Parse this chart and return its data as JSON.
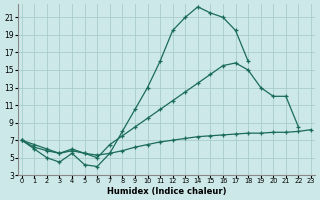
{
  "xlabel": "Humidex (Indice chaleur)",
  "bg_color": "#cce8e8",
  "grid_color": "#aacccc",
  "line_color": "#1a6b5a",
  "xlim": [
    -0.3,
    23.3
  ],
  "ylim": [
    3,
    22.5
  ],
  "yticks": [
    3,
    5,
    7,
    9,
    11,
    13,
    15,
    17,
    19,
    21
  ],
  "xtick_labels": [
    "0",
    "1",
    "2",
    "3",
    "4",
    "5",
    "6",
    "7",
    "8",
    "9",
    "10",
    "11",
    "12",
    "13",
    "14",
    "15",
    "16",
    "17",
    "18",
    "19",
    "20",
    "21",
    "22",
    "23"
  ],
  "curve1_x": [
    0,
    1,
    2,
    3,
    4,
    5,
    6,
    7,
    8,
    9,
    10,
    11,
    12,
    13,
    14,
    15,
    16,
    17,
    18
  ],
  "curve1_y": [
    7.0,
    6.0,
    5.0,
    4.5,
    5.5,
    4.2,
    4.0,
    5.5,
    8.0,
    10.5,
    13.0,
    16.0,
    19.5,
    21.0,
    22.2,
    21.5,
    21.0,
    19.5,
    16.0
  ],
  "curve2_x": [
    0,
    1,
    2,
    3,
    4,
    5,
    6,
    7,
    8,
    9,
    10,
    11,
    12,
    13,
    14,
    15,
    16,
    17,
    18,
    19,
    20,
    21,
    22
  ],
  "curve2_y": [
    7.0,
    6.5,
    6.0,
    5.5,
    6.0,
    5.5,
    5.0,
    6.5,
    7.5,
    8.5,
    9.5,
    10.5,
    11.5,
    12.5,
    13.5,
    14.5,
    15.5,
    15.8,
    15.0,
    13.0,
    12.0,
    12.0,
    8.5
  ],
  "curve3_x": [
    0,
    1,
    2,
    3,
    4,
    5,
    6,
    7,
    8,
    9,
    10,
    11,
    12,
    13,
    14,
    15,
    16,
    17,
    18,
    19,
    20,
    21,
    22,
    23
  ],
  "curve3_y": [
    7.0,
    6.2,
    5.8,
    5.5,
    5.8,
    5.5,
    5.3,
    5.5,
    5.8,
    6.2,
    6.5,
    6.8,
    7.0,
    7.2,
    7.4,
    7.5,
    7.6,
    7.7,
    7.8,
    7.8,
    7.9,
    7.9,
    8.0,
    8.2
  ]
}
